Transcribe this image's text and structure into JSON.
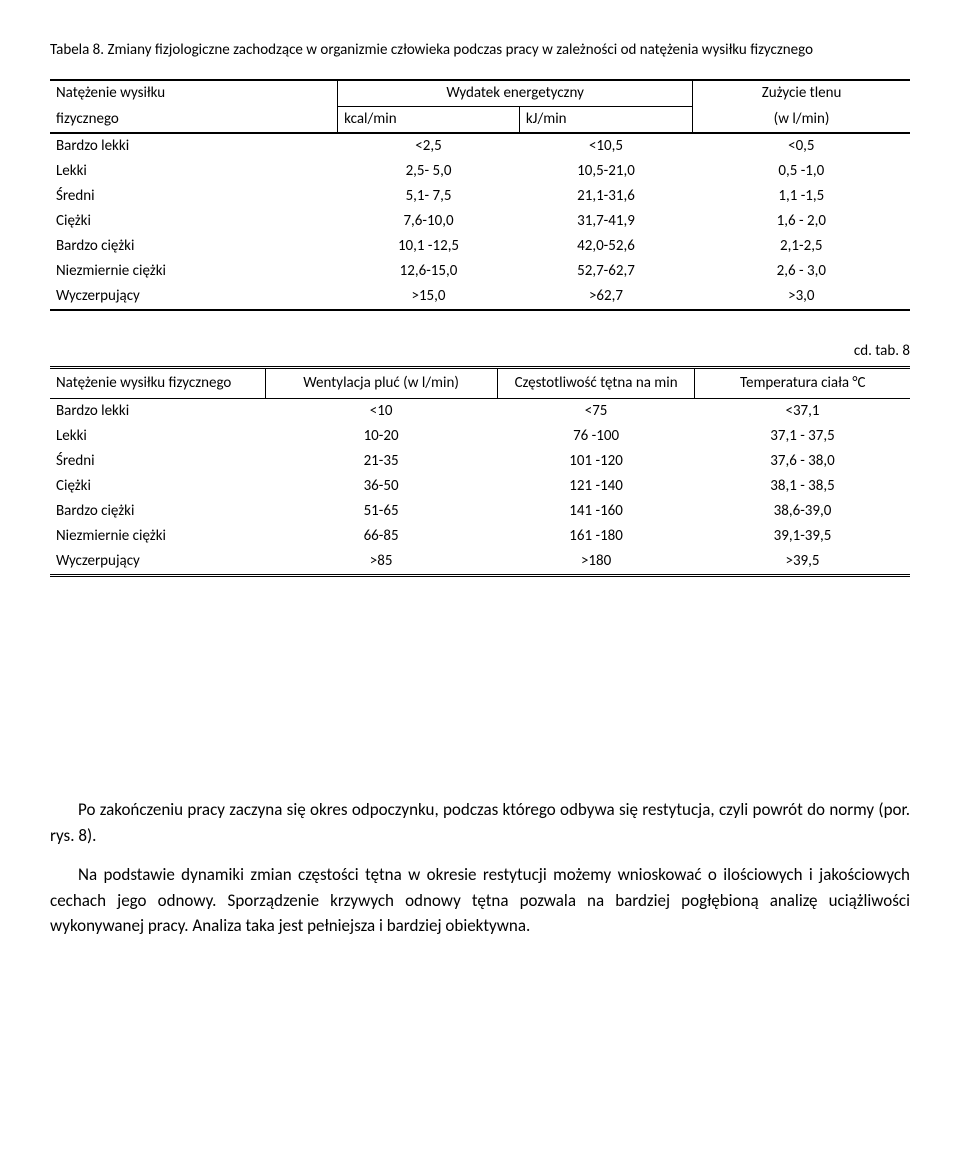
{
  "caption": "Tabela 8. Zmiany fizjologiczne zachodzące w organizmie człowieka podczas pracy w zależności od natężenia wysiłku fizycznego",
  "table1": {
    "col0_header_line1": "Natężenie wysiłku",
    "col0_header_line2": "fizycznego",
    "energ_header": "Wydatek energetyczny",
    "zuz_header": "Zużycie tlenu",
    "kcal_header": "kcal/min",
    "kj_header": "kJ/min",
    "wl_header": "(w l/min)",
    "rows": [
      {
        "label": "Bardzo lekki",
        "kcal": "<2,5",
        "kj": "<10,5",
        "o2": "<0,5"
      },
      {
        "label": "Lekki",
        "kcal": "2,5- 5,0",
        "kj": "10,5-21,0",
        "o2": "0,5 -1,0"
      },
      {
        "label": "Średni",
        "kcal": "5,1- 7,5",
        "kj": "21,1-31,6",
        "o2": "1,1 -1,5"
      },
      {
        "label": "Ciężki",
        "kcal": "7,6-10,0",
        "kj": "31,7-41,9",
        "o2": "1,6 - 2,0"
      },
      {
        "label": "Bardzo ciężki",
        "kcal": "10,1 -12,5",
        "kj": "42,0-52,6",
        "o2": "2,1-2,5"
      },
      {
        "label": "Niezmiernie ciężki",
        "kcal": "12,6-15,0",
        "kj": "52,7-62,7",
        "o2": "2,6 - 3,0"
      },
      {
        "label": "Wyczerpujący",
        "kcal": ">15,0",
        "kj": ">62,7",
        "o2": ">3,0"
      }
    ]
  },
  "cd_tab": "cd. tab. 8",
  "table2": {
    "col0_header": "Natężenie wysiłku fizycznego",
    "col1_header": "Wentylacja pluć (w l/min)",
    "col2_header": "Częstotliwość tętna na min",
    "col3_header": "Temperatura ciała °C",
    "rows": [
      {
        "label": "Bardzo lekki",
        "vent": "<10",
        "hr": "<75",
        "temp": "<37,1"
      },
      {
        "label": "Lekki",
        "vent": "10-20",
        "hr": "76 -100",
        "temp": "37,1 - 37,5"
      },
      {
        "label": "Średni",
        "vent": "21-35",
        "hr": "101 -120",
        "temp": "37,6 - 38,0"
      },
      {
        "label": "Ciężki",
        "vent": "36-50",
        "hr": "121 -140",
        "temp": "38,1 - 38,5"
      },
      {
        "label": "Bardzo ciężki",
        "vent": "51-65",
        "hr": "141 -160",
        "temp": "38,6-39,0"
      },
      {
        "label": "Niezmiernie ciężki",
        "vent": "66-85",
        "hr": "161 -180",
        "temp": "39,1-39,5"
      },
      {
        "label": "Wyczerpujący",
        "vent": ">85",
        "hr": ">180",
        "temp": ">39,5"
      }
    ]
  },
  "paragraph1": "Po zakończeniu pracy zaczyna się okres odpoczynku, podczas którego odbywa się restytucja, czyli powrót do normy (por. rys. 8).",
  "paragraph2": "Na podstawie dynamiki zmian częstości tętna w okresie restytucji możemy wnioskować o ilościowych i jakościowych cechach jego odnowy. Sporządzenie krzywych odnowy tętna pozwala na bardziej pogłębioną analizę uciążliwości wykonywanej pracy. Analiza taka jest pełniejsza i bardziej obiektywna."
}
